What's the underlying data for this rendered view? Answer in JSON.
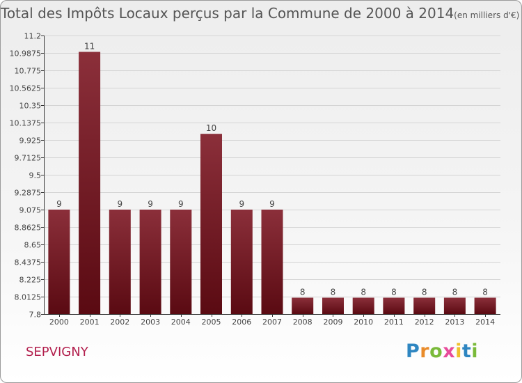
{
  "title": {
    "main": "Total des Impôts Locaux perçus par la Commune de 2000 à 2014",
    "unit": "(en milliers d'€)"
  },
  "commune": "SEPVIGNY",
  "logo": {
    "letters": [
      "P",
      "r",
      "o",
      "x",
      "i",
      "t",
      "i"
    ]
  },
  "colors": {
    "bar_top": "#8b2f3a",
    "bar_bottom": "#5a0a12",
    "grid": "#d4d4d4",
    "axis": "#333333",
    "text": "#444444"
  },
  "chart_data": {
    "type": "bar",
    "title": "Total des Impôts Locaux perçus par la Commune de 2000 à 2014",
    "xlabel": "",
    "ylabel": "",
    "ylim": [
      7.8,
      11.2
    ],
    "grid": true,
    "categories": [
      "2000",
      "2001",
      "2002",
      "2003",
      "2004",
      "2005",
      "2006",
      "2007",
      "2008",
      "2009",
      "2010",
      "2011",
      "2012",
      "2013",
      "2014"
    ],
    "values": [
      9,
      11,
      9,
      9,
      9,
      10,
      9,
      9,
      8,
      8,
      8,
      8,
      8,
      8,
      8
    ],
    "value_labels": [
      "9",
      "11",
      "9",
      "9",
      "9",
      "10",
      "9",
      "9",
      "8",
      "8",
      "8",
      "8",
      "8",
      "8",
      "8"
    ],
    "display_values": [
      9.075,
      11.0,
      9.075,
      9.075,
      9.075,
      10.0,
      9.075,
      9.075,
      8.0,
      8.0,
      8.0,
      8.0,
      8.0,
      8.0,
      8.0
    ],
    "y_ticks": [
      "7.8",
      "8.0125",
      "8.225",
      "8.4375",
      "8.65",
      "8.8625",
      "9.075",
      "9.2875",
      "9.5",
      "9.7125",
      "9.925",
      "10.1375",
      "10.35",
      "10.5625",
      "10.775",
      "10.9875",
      "11.2"
    ]
  }
}
